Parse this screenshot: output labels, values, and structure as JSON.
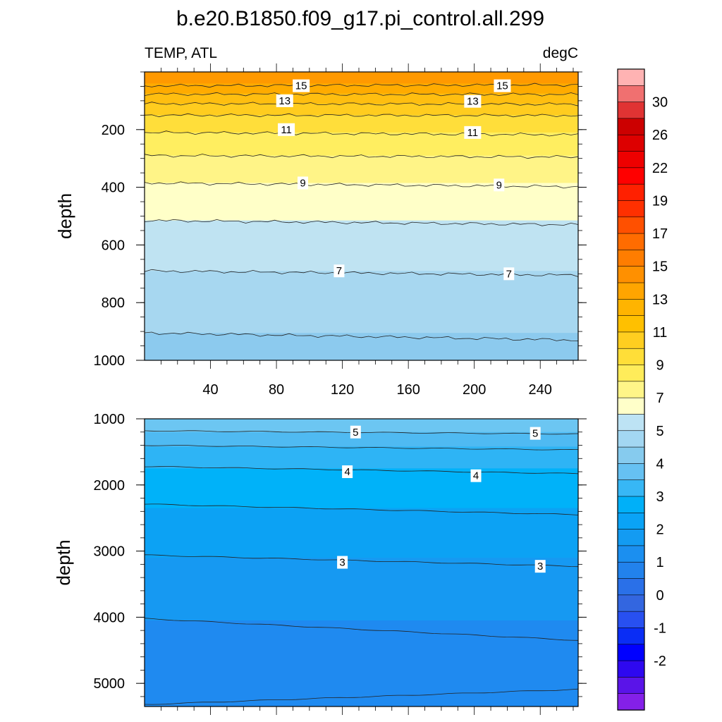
{
  "chart_data": {
    "type": "contour",
    "title": "b.e20.B1850.f09_g17.pi_control.all.299",
    "subtitle_left": "TEMP, ATL",
    "subtitle_right": "degC",
    "xticks": [
      "40",
      "80",
      "120",
      "160",
      "200",
      "240"
    ],
    "xlim": [
      0,
      263
    ],
    "panels": [
      {
        "name": "upper",
        "ylabel": "depth",
        "ylim": [
          0,
          1000
        ],
        "yticks": [
          "200",
          "400",
          "600",
          "800",
          "1000"
        ],
        "bands": [
          {
            "top": 0,
            "bottom": 40,
            "color": "#ff9900"
          },
          {
            "top": 40,
            "bottom": 75,
            "color": "#ffab00"
          },
          {
            "top": 75,
            "bottom": 110,
            "color": "#ffbe10"
          },
          {
            "top": 110,
            "bottom": 150,
            "color": "#ffcc1f"
          },
          {
            "top": 150,
            "bottom": 210,
            "color": "#ffde3a"
          },
          {
            "top": 210,
            "bottom": 290,
            "color": "#ffee60"
          },
          {
            "top": 290,
            "bottom": 385,
            "color": "#fff487"
          },
          {
            "top": 385,
            "bottom": 515,
            "color": "#ffffc8"
          },
          {
            "top": 515,
            "bottom": 690,
            "color": "#bfe3f2"
          },
          {
            "top": 690,
            "bottom": 905,
            "color": "#a7d7f0"
          },
          {
            "top": 905,
            "bottom": 1000,
            "color": "#8ccaee"
          }
        ],
        "contours": [
          {
            "left": 48,
            "right": 45
          },
          {
            "left": 77,
            "right": 78
          },
          {
            "left": 110,
            "right": 112
          },
          {
            "left": 150,
            "right": 151
          },
          {
            "left": 210,
            "right": 218
          },
          {
            "left": 290,
            "right": 295
          },
          {
            "left": 385,
            "right": 398
          },
          {
            "left": 515,
            "right": 530
          },
          {
            "left": 690,
            "right": 705
          },
          {
            "left": 905,
            "right": 930
          }
        ],
        "labels": [
          {
            "text": "15",
            "x": 95,
            "y": 48
          },
          {
            "text": "15",
            "x": 217,
            "y": 48
          },
          {
            "text": "13",
            "x": 85,
            "y": 100
          },
          {
            "text": "13",
            "x": 199,
            "y": 102
          },
          {
            "text": "11",
            "x": 86,
            "y": 200
          },
          {
            "text": "11",
            "x": 199,
            "y": 210
          },
          {
            "text": "9",
            "x": 96,
            "y": 385
          },
          {
            "text": "9",
            "x": 215,
            "y": 392
          },
          {
            "text": "7",
            "x": 118,
            "y": 690
          },
          {
            "text": "7",
            "x": 221,
            "y": 700
          }
        ]
      },
      {
        "name": "lower",
        "ylabel": "depth",
        "ylim": [
          1000,
          5350
        ],
        "yticks": [
          "1000",
          "2000",
          "3000",
          "4000",
          "5000"
        ],
        "bands": [
          {
            "top": 1000,
            "bottom": 1200,
            "color": "#6cc6f2"
          },
          {
            "top": 1200,
            "bottom": 1420,
            "color": "#4fbaf2"
          },
          {
            "top": 1420,
            "bottom": 1750,
            "color": "#2eb4f5"
          },
          {
            "top": 1750,
            "bottom": 2350,
            "color": "#00b2f9"
          },
          {
            "top": 2350,
            "bottom": 3100,
            "color": "#0ca2f4"
          },
          {
            "top": 3100,
            "bottom": 4050,
            "color": "#1699f2"
          },
          {
            "top": 4050,
            "bottom": 5350,
            "color": "#1f8af0"
          }
        ],
        "contours": [
          {
            "left": 1180,
            "right": 1230
          },
          {
            "left": 1400,
            "right": 1470
          },
          {
            "left": 1720,
            "right": 1830
          },
          {
            "left": 2290,
            "right": 2450
          },
          {
            "left": 3060,
            "right": 3230
          },
          {
            "left": 4020,
            "right": 4350
          },
          {
            "left": 5320,
            "right": 5090
          }
        ],
        "labels": [
          {
            "text": "5",
            "x": 128,
            "y": 1200
          },
          {
            "text": "5",
            "x": 237,
            "y": 1220
          },
          {
            "text": "4",
            "x": 123,
            "y": 1800
          },
          {
            "text": "4",
            "x": 201,
            "y": 1860
          },
          {
            "text": "3",
            "x": 120,
            "y": 3170
          },
          {
            "text": "3",
            "x": 240,
            "y": 3230
          }
        ]
      }
    ],
    "colorbar": {
      "colors": [
        "#ffb3b3",
        "#f07070",
        "#e03333",
        "#cc0000",
        "#dd0000",
        "#ee0000",
        "#ff0000",
        "#ff2000",
        "#ff3000",
        "#ff5000",
        "#ff6c00",
        "#ff7d00",
        "#ff9000",
        "#ffa500",
        "#ffb400",
        "#ffc000",
        "#ffce20",
        "#ffde38",
        "#ffec5a",
        "#fff588",
        "#ffffc9",
        "#bde3f4",
        "#a3d7f2",
        "#86cbee",
        "#66c1f2",
        "#37b7f5",
        "#00b0f8",
        "#0aa3f6",
        "#139bf2",
        "#1b8ff0",
        "#2282ec",
        "#2a70e8",
        "#3366e0",
        "#2850f0",
        "#0a2df5",
        "#0000ff",
        "#2e08f0",
        "#5a14e8",
        "#8420e8"
      ],
      "labels": [
        "30",
        "26",
        "22",
        "19",
        "17",
        "15",
        "13",
        "11",
        "9",
        "7",
        "5",
        "4",
        "3",
        "2",
        "1",
        "0",
        "-1",
        "-2"
      ]
    }
  }
}
